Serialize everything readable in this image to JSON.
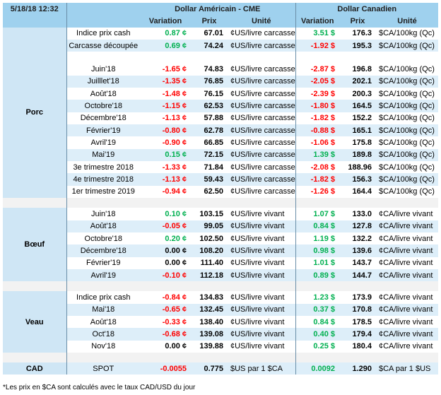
{
  "header": {
    "datetime": "5/18/18 12:32",
    "usd_title": "Dollar Américain - CME",
    "cad_title": "Dollar Canadien",
    "col_variation": "Variation",
    "col_prix": "Prix",
    "col_unite": "Unité"
  },
  "groups": {
    "porc": "Porc",
    "boeuf": "Bœuf",
    "veau": "Veau",
    "cad": "CAD"
  },
  "porc_top": [
    {
      "label": "Indice prix cash",
      "uv": "0.87 ¢",
      "us": "pos",
      "up": "67.01",
      "uu": "¢US/livre carcasse",
      "cv": "3.51 $",
      "cs": "pos",
      "cp": "176.3",
      "cu": "$CA/100kg (Qc)"
    },
    {
      "label": "Carcasse découpée",
      "uv": "0.69 ¢",
      "us": "pos",
      "up": "74.24",
      "uu": "¢US/livre carcasse",
      "cv": "-1.92 $",
      "cs": "neg",
      "cp": "195.3",
      "cu": "$CA/100kg (Qc)"
    }
  ],
  "porc_futures": [
    {
      "label": "Juin'18",
      "uv": "-1.65 ¢",
      "us": "neg",
      "up": "74.83",
      "uu": "¢US/livre carcasse",
      "cv": "-2.87 $",
      "cs": "neg",
      "cp": "196.8",
      "cu": "$CA/100kg (Qc)"
    },
    {
      "label": "Juilllet'18",
      "uv": "-1.35 ¢",
      "us": "neg",
      "up": "76.85",
      "uu": "¢US/livre carcasse",
      "cv": "-2.05 $",
      "cs": "neg",
      "cp": "202.1",
      "cu": "$CA/100kg (Qc)"
    },
    {
      "label": "Août'18",
      "uv": "-1.48 ¢",
      "us": "neg",
      "up": "76.15",
      "uu": "¢US/livre carcasse",
      "cv": "-2.39 $",
      "cs": "neg",
      "cp": "200.3",
      "cu": "$CA/100kg (Qc)"
    },
    {
      "label": "Octobre'18",
      "uv": "-1.15 ¢",
      "us": "neg",
      "up": "62.53",
      "uu": "¢US/livre carcasse",
      "cv": "-1.80 $",
      "cs": "neg",
      "cp": "164.5",
      "cu": "$CA/100kg (Qc)"
    },
    {
      "label": "Décembre'18",
      "uv": "-1.13 ¢",
      "us": "neg",
      "up": "57.88",
      "uu": "¢US/livre carcasse",
      "cv": "-1.82 $",
      "cs": "neg",
      "cp": "152.2",
      "cu": "$CA/100kg (Qc)"
    },
    {
      "label": "Février'19",
      "uv": "-0.80 ¢",
      "us": "neg",
      "up": "62.78",
      "uu": "¢US/livre carcasse",
      "cv": "-0.88 $",
      "cs": "neg",
      "cp": "165.1",
      "cu": "$CA/100kg (Qc)"
    },
    {
      "label": "Avril'19",
      "uv": "-0.90 ¢",
      "us": "neg",
      "up": "66.85",
      "uu": "¢US/livre carcasse",
      "cv": "-1.06 $",
      "cs": "neg",
      "cp": "175.8",
      "cu": "$CA/100kg (Qc)"
    },
    {
      "label": "Mai'19",
      "uv": "0.15 ¢",
      "us": "pos",
      "up": "72.15",
      "uu": "¢US/livre carcasse",
      "cv": "1.39 $",
      "cs": "pos",
      "cp": "189.8",
      "cu": "$CA/100kg (Qc)"
    },
    {
      "label": "3e trimestre 2018",
      "uv": "-1.33 ¢",
      "us": "neg",
      "up": "71.84",
      "uu": "¢US/livre carcasse",
      "cv": "-2.08 $",
      "cs": "neg",
      "cp": "188.96",
      "cu": "$CA/100kg (Qc)"
    },
    {
      "label": "4e trimestre 2018",
      "uv": "-1.13 ¢",
      "us": "neg",
      "up": "59.43",
      "uu": "¢US/livre carcasse",
      "cv": "-1.82 $",
      "cs": "neg",
      "cp": "156.3",
      "cu": "$CA/100kg (Qc)"
    },
    {
      "label": "1er trimestre 2019",
      "uv": "-0.94 ¢",
      "us": "neg",
      "up": "62.50",
      "uu": "¢US/livre carcasse",
      "cv": "-1.26 $",
      "cs": "neg",
      "cp": "164.4",
      "cu": "$CA/100kg (Qc)"
    }
  ],
  "boeuf": [
    {
      "label": "Juin'18",
      "uv": "0.10 ¢",
      "us": "pos",
      "up": "103.15",
      "uu": "¢US/livre vivant",
      "cv": "1.07 $",
      "cs": "pos",
      "cp": "133.0",
      "cu": "¢CA/livre vivant"
    },
    {
      "label": "Août'18",
      "uv": "-0.05 ¢",
      "us": "neg",
      "up": "99.05",
      "uu": "¢US/livre vivant",
      "cv": "0.84 $",
      "cs": "pos",
      "cp": "127.8",
      "cu": "¢CA/livre vivant"
    },
    {
      "label": "Octobre'18",
      "uv": "0.20 ¢",
      "us": "pos",
      "up": "102.50",
      "uu": "¢US/livre vivant",
      "cv": "1.19 $",
      "cs": "pos",
      "cp": "132.2",
      "cu": "¢CA/livre vivant"
    },
    {
      "label": "Décembre'18",
      "uv": "0.00 ¢",
      "us": "zero",
      "up": "108.20",
      "uu": "¢US/livre vivant",
      "cv": "0.98 $",
      "cs": "pos",
      "cp": "139.6",
      "cu": "¢CA/livre vivant"
    },
    {
      "label": "Février'19",
      "uv": "0.00 ¢",
      "us": "zero",
      "up": "111.40",
      "uu": "¢US/livre vivant",
      "cv": "1.01 $",
      "cs": "pos",
      "cp": "143.7",
      "cu": "¢CA/livre vivant"
    },
    {
      "label": "Avril'19",
      "uv": "-0.10 ¢",
      "us": "neg",
      "up": "112.18",
      "uu": "¢US/livre vivant",
      "cv": "0.89 $",
      "cs": "pos",
      "cp": "144.7",
      "cu": "¢CA/livre vivant"
    }
  ],
  "veau": [
    {
      "label": "Indice prix cash",
      "uv": "-0.84 ¢",
      "us": "neg",
      "up": "134.83",
      "uu": "¢US/livre vivant",
      "cv": "1.23 $",
      "cs": "pos",
      "cp": "173.9",
      "cu": "¢CA/livre vivant"
    },
    {
      "label": "Mai'18",
      "uv": "-0.65 ¢",
      "us": "neg",
      "up": "132.45",
      "uu": "¢US/livre vivant",
      "cv": "0.37 $",
      "cs": "pos",
      "cp": "170.8",
      "cu": "¢CA/livre vivant"
    },
    {
      "label": "Août'18",
      "uv": "-0.33 ¢",
      "us": "neg",
      "up": "138.40",
      "uu": "¢US/livre vivant",
      "cv": "0.84 $",
      "cs": "pos",
      "cp": "178.5",
      "cu": "¢CA/livre vivant"
    },
    {
      "label": "Oct'18",
      "uv": "-0.68 ¢",
      "us": "neg",
      "up": "139.08",
      "uu": "¢US/livre vivant",
      "cv": "0.40 $",
      "cs": "pos",
      "cp": "179.4",
      "cu": "¢CA/livre vivant"
    },
    {
      "label": "Nov'18",
      "uv": "0.00 ¢",
      "us": "zero",
      "up": "139.88",
      "uu": "¢US/livre vivant",
      "cv": "0.25 $",
      "cs": "pos",
      "cp": "180.4",
      "cu": "¢CA/livre vivant"
    }
  ],
  "cad_row": {
    "label": "SPOT",
    "uv": "-0.0055",
    "us": "neg",
    "up": "0.775",
    "uu": "$US par 1 $CA",
    "cv": "0.0092",
    "cs": "pos",
    "cp": "1.290",
    "cu": "$CA par 1 $US"
  },
  "footnote": "*Les  prix en $CA sont calculés avec le taux CAD/USD du jour"
}
